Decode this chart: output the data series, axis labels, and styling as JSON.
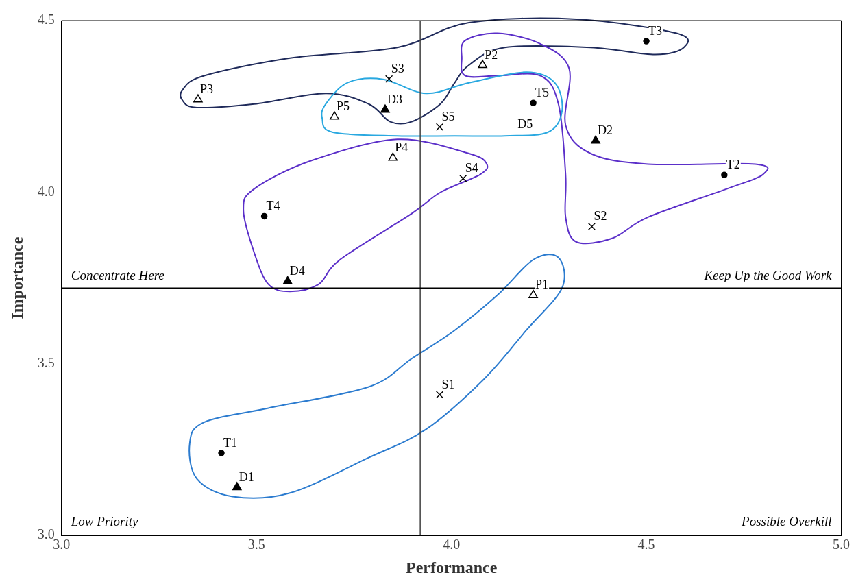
{
  "chart_data": {
    "type": "scatter",
    "xlabel": "Performance",
    "ylabel": "Importance",
    "xlim": [
      3.0,
      5.0
    ],
    "xticks": [
      {
        "value": 3,
        "label": "3.0"
      },
      {
        "value": 3.5,
        "label": "3.5"
      },
      {
        "value": 4,
        "label": "4.0"
      },
      {
        "value": 4.5,
        "label": "4.5"
      },
      {
        "value": 5,
        "label": "5.0"
      }
    ],
    "ylim": [
      3.0,
      4.5
    ],
    "yticks": [
      {
        "value": 3,
        "label": "3.0"
      },
      {
        "value": 3.5,
        "label": "3.5"
      },
      {
        "value": 4,
        "label": "4.0"
      },
      {
        "value": 4.5,
        "label": "4.5"
      }
    ],
    "grid": false,
    "legend": false,
    "series": [
      {
        "marker": "triangle-open",
        "color": "#000000",
        "x": [
          4.21,
          4.08,
          3.35,
          3.85,
          3.7
        ],
        "values": [
          3.7,
          4.37,
          4.27,
          4.1,
          4.22
        ]
      },
      {
        "marker": "cross",
        "color": "#000000",
        "x": [
          3.97,
          4.36,
          3.84,
          4.03,
          3.97
        ],
        "values": [
          3.41,
          3.9,
          4.33,
          4.04,
          4.19
        ]
      },
      {
        "marker": "triangle",
        "color": "#000000",
        "x": [
          3.45,
          4.37,
          3.83,
          3.58
        ],
        "values": [
          3.14,
          4.15,
          4.24,
          3.74
        ]
      },
      {
        "marker": "circle",
        "color": "#000000",
        "x": [
          3.41,
          4.7,
          4.5,
          3.52,
          4.21
        ],
        "values": [
          3.24,
          4.05,
          4.44,
          3.93,
          4.26
        ]
      }
    ],
    "ref_lines": [
      {
        "axis": "x",
        "value": 3.92,
        "color": "#404040"
      },
      {
        "axis": "y",
        "value": 3.72,
        "color": "#000000"
      }
    ],
    "annotations": [
      "Concentrate Here",
      "Keep Up the Good Work",
      "Low Priority",
      "Possible Overkill",
      {
        "text": "P1",
        "x": 4.21,
        "y": 3.7
      },
      {
        "text": "P2",
        "x": 4.08,
        "y": 4.37
      },
      {
        "text": "P3",
        "x": 3.35,
        "y": 4.27
      },
      {
        "text": "P4",
        "x": 3.85,
        "y": 4.1
      },
      {
        "text": "P5",
        "x": 3.7,
        "y": 4.22
      },
      {
        "text": "S1",
        "x": 3.97,
        "y": 3.41
      },
      {
        "text": "S2",
        "x": 4.36,
        "y": 3.9
      },
      {
        "text": "S3",
        "x": 3.84,
        "y": 4.33
      },
      {
        "text": "S4",
        "x": 4.03,
        "y": 4.04
      },
      {
        "text": "S5",
        "x": 3.97,
        "y": 4.19
      },
      {
        "text": "D1",
        "x": 3.45,
        "y": 3.14
      },
      {
        "text": "D2",
        "x": 4.37,
        "y": 4.15
      },
      {
        "text": "D3",
        "x": 3.83,
        "y": 4.24
      },
      {
        "text": "D4",
        "x": 3.58,
        "y": 3.74
      },
      "D5",
      {
        "text": "T1",
        "x": 3.41,
        "y": 3.24
      },
      {
        "text": "T2",
        "x": 4.7,
        "y": 4.05
      },
      {
        "text": "T3",
        "x": 4.5,
        "y": 4.44
      },
      {
        "text": "T4",
        "x": 3.52,
        "y": 3.93
      },
      {
        "text": "T5",
        "x": 4.21,
        "y": 4.26
      }
    ]
  }
}
